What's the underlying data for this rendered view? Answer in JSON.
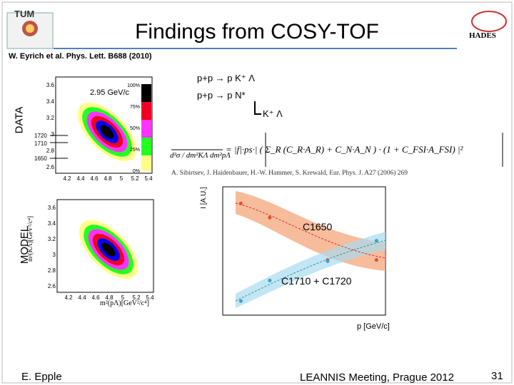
{
  "header": {
    "logo_left": "TUM",
    "title": "Findings from COSY-TOF",
    "logo_right": "HADES"
  },
  "citation": "W. Eyrich et al. Phys. Lett. B688 (2010)",
  "dalitz": {
    "data_label": "DATA",
    "model_label": "MODEL",
    "beam": "2.95 GeV/c",
    "y_axis_label": "m²(KΛ)[GeV²/c⁴]",
    "x_axis_label": "m²(pΛ)[GeV²/c⁴]",
    "yticks": [
      "3.6",
      "3.4",
      "3.2",
      "3",
      "2.8",
      "2.6"
    ],
    "xticks": [
      "4.2",
      "4.4",
      "4.6",
      "4.8",
      "5",
      "5.2",
      "5.4"
    ],
    "resonance_marks": [
      "1720",
      "1710",
      "1650"
    ],
    "scale": [
      "100%",
      "75%",
      "50%",
      "25%",
      "0%"
    ]
  },
  "reactions": [
    "p+p → p K⁺ Λ",
    "p+p → p N*",
    "K⁺ Λ"
  ],
  "formula": {
    "lhs": "d²σ / dm²KΛ dm²pΛ",
    "rhs": "= |f|·ps·| ( Σ_R (C_R·A_R) + C_N·A_N ) · (1 + C_FSI·A_FSI) |²"
  },
  "reference": "A. Sibirtsev, J. Haidenbauer, H.-W. Hammer, S. Krewald, Eur. Phys. J. A27 (2006) 269",
  "chart_data": {
    "type": "scatter",
    "y_axis_label": "I [A.U.]",
    "x_axis_label": "p [GeV/c]",
    "x": [
      2.9,
      3.06,
      3.38,
      3.65
    ],
    "xlim": [
      2.8,
      3.7
    ],
    "ylim": [
      0,
      1
    ],
    "series": [
      {
        "name": "C1650",
        "color": "#e0502a",
        "values": [
          0.87,
          0.76,
          0.43,
          0.43
        ]
      },
      {
        "name": "C1710 + C1720",
        "color": "#3aa0d0",
        "values": [
          0.11,
          0.27,
          0.42,
          0.58
        ]
      }
    ]
  },
  "footer": {
    "author": "E. Epple",
    "event": "LEANNIS Meeting, Prague 2012",
    "page": "31"
  }
}
